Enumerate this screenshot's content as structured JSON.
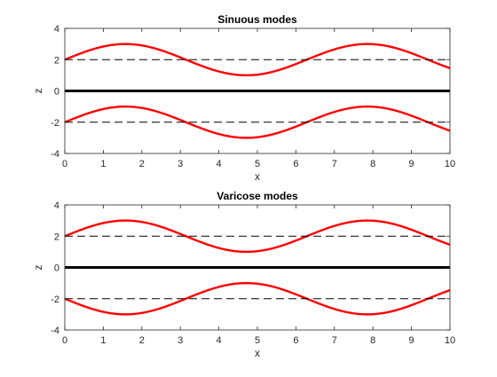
{
  "chart_data": [
    {
      "type": "line",
      "title": "Sinuous modes",
      "xlabel": "x",
      "ylabel": "z",
      "xlim": [
        0,
        10
      ],
      "ylim": [
        -4,
        4
      ],
      "xticks": [
        "0",
        "1",
        "2",
        "3",
        "4",
        "5",
        "6",
        "7",
        "8",
        "9",
        "10"
      ],
      "yticks": [
        "-4",
        "-2",
        "0",
        "2",
        "4"
      ],
      "grid": false,
      "legend": "none",
      "series": [
        {
          "role": "upper-interface",
          "formula": "2 + sin(x)",
          "color": "#ff0000",
          "style": "solid"
        },
        {
          "role": "lower-interface",
          "formula": "-2 + sin(x)",
          "color": "#ff0000",
          "style": "solid"
        },
        {
          "role": "upper-reference",
          "formula": "2",
          "color": "#000000",
          "style": "dashed"
        },
        {
          "role": "lower-reference",
          "formula": "-2",
          "color": "#000000",
          "style": "dashed"
        },
        {
          "role": "centerline",
          "formula": "0",
          "color": "#000000",
          "style": "solid-thick"
        }
      ]
    },
    {
      "type": "line",
      "title": "Varicose modes",
      "xlabel": "x",
      "ylabel": "z",
      "xlim": [
        0,
        10
      ],
      "ylim": [
        -4,
        4
      ],
      "xticks": [
        "0",
        "1",
        "2",
        "3",
        "4",
        "5",
        "6",
        "7",
        "8",
        "9",
        "10"
      ],
      "yticks": [
        "-4",
        "-2",
        "0",
        "2",
        "4"
      ],
      "grid": false,
      "legend": "none",
      "series": [
        {
          "role": "upper-interface",
          "formula": "2 + sin(x)",
          "color": "#ff0000",
          "style": "solid"
        },
        {
          "role": "lower-interface",
          "formula": "-2 - sin(x)",
          "color": "#ff0000",
          "style": "solid"
        },
        {
          "role": "upper-reference",
          "formula": "2",
          "color": "#000000",
          "style": "dashed"
        },
        {
          "role": "lower-reference",
          "formula": "-2",
          "color": "#000000",
          "style": "dashed"
        },
        {
          "role": "centerline",
          "formula": "0",
          "color": "#000000",
          "style": "solid-thick"
        }
      ]
    }
  ]
}
